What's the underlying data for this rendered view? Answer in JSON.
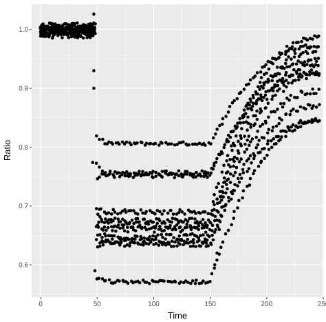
{
  "chart_data": {
    "type": "scatter",
    "title": "",
    "xlabel": "Time",
    "ylabel": "Ratio",
    "xlim": [
      -8,
      250
    ],
    "ylim": [
      0.545,
      1.043
    ],
    "x_ticks": [
      0,
      50,
      100,
      150,
      200,
      250
    ],
    "x_tick_labels": [
      "0",
      "50",
      "100",
      "150",
      "200",
      "250"
    ],
    "y_ticks": [
      0.6,
      0.7,
      0.8,
      0.9,
      1.0
    ],
    "y_tick_labels": [
      "0.6",
      "0.7",
      "0.8",
      "0.9",
      "1.0"
    ],
    "grid": true,
    "legend": "none",
    "background_color": "#ebebeb",
    "gridline_color": "#ffffff",
    "point_color": "#000000",
    "series": [
      {
        "x_start": 0,
        "x_end": 48,
        "step": 1,
        "start": 0.995,
        "plateau": 0.995,
        "end": 0.995,
        "jitter": 0.005
      },
      {
        "x_start": 0,
        "x_end": 48,
        "step": 1,
        "start": 1.0,
        "plateau": 1.0,
        "end": 1.0,
        "jitter": 0.005
      },
      {
        "x_start": 0,
        "x_end": 48,
        "step": 1,
        "start": 0.99,
        "plateau": 0.99,
        "end": 0.99,
        "jitter": 0.005
      },
      {
        "x_start": 0,
        "x_end": 48,
        "step": 1,
        "start": 1.004,
        "plateau": 1.004,
        "end": 1.004,
        "jitter": 0.004
      },
      {
        "x_start": 0,
        "x_end": 48,
        "step": 1,
        "start": 0.997,
        "plateau": 0.997,
        "end": 0.997,
        "jitter": 0.006
      },
      {
        "x_start": 0,
        "x_end": 48,
        "step": 1,
        "start": 1.007,
        "plateau": 1.007,
        "end": 1.007,
        "jitter": 0.004
      },
      {
        "x_start": 50,
        "x_end": 246,
        "step": 2,
        "start": 0.818,
        "plateau": 0.806,
        "end": 0.973,
        "jitter": 0.003
      },
      {
        "x_start": 50,
        "x_end": 246,
        "step": 2,
        "start": 0.772,
        "plateau": 0.752,
        "end": 0.948,
        "jitter": 0.004
      },
      {
        "x_start": 50,
        "x_end": 246,
        "step": 2,
        "start": 0.746,
        "plateau": 0.756,
        "end": 0.928,
        "jitter": 0.004
      },
      {
        "x_start": 50,
        "x_end": 246,
        "step": 2,
        "start": 0.695,
        "plateau": 0.69,
        "end": 0.988,
        "jitter": 0.004
      },
      {
        "x_start": 50,
        "x_end": 246,
        "step": 2,
        "start": 0.682,
        "plateau": 0.675,
        "end": 0.966,
        "jitter": 0.005
      },
      {
        "x_start": 50,
        "x_end": 246,
        "step": 2,
        "start": 0.672,
        "plateau": 0.668,
        "end": 0.94,
        "jitter": 0.005
      },
      {
        "x_start": 50,
        "x_end": 246,
        "step": 2,
        "start": 0.665,
        "plateau": 0.66,
        "end": 0.922,
        "jitter": 0.005
      },
      {
        "x_start": 50,
        "x_end": 246,
        "step": 2,
        "start": 0.652,
        "plateau": 0.648,
        "end": 0.895,
        "jitter": 0.005
      },
      {
        "x_start": 50,
        "x_end": 246,
        "step": 2,
        "start": 0.64,
        "plateau": 0.635,
        "end": 0.87,
        "jitter": 0.004
      },
      {
        "x_start": 50,
        "x_end": 246,
        "step": 2,
        "start": 0.628,
        "plateau": 0.64,
        "end": 0.845,
        "jitter": 0.004
      },
      {
        "x_start": 50,
        "x_end": 246,
        "step": 2,
        "start": 0.578,
        "plateau": 0.571,
        "end": 0.842,
        "jitter": 0.003
      }
    ],
    "extra_points": [
      {
        "x": 47,
        "y": 1.026
      },
      {
        "x": 47,
        "y": 0.93
      },
      {
        "x": 47,
        "y": 0.9
      },
      {
        "x": 48,
        "y": 0.59
      },
      {
        "x": 46,
        "y": 0.774
      },
      {
        "x": 154,
        "y": 0.6
      },
      {
        "x": 156,
        "y": 0.62
      },
      {
        "x": 158,
        "y": 0.66
      },
      {
        "x": 160,
        "y": 0.71
      },
      {
        "x": 162,
        "y": 0.74
      }
    ]
  }
}
